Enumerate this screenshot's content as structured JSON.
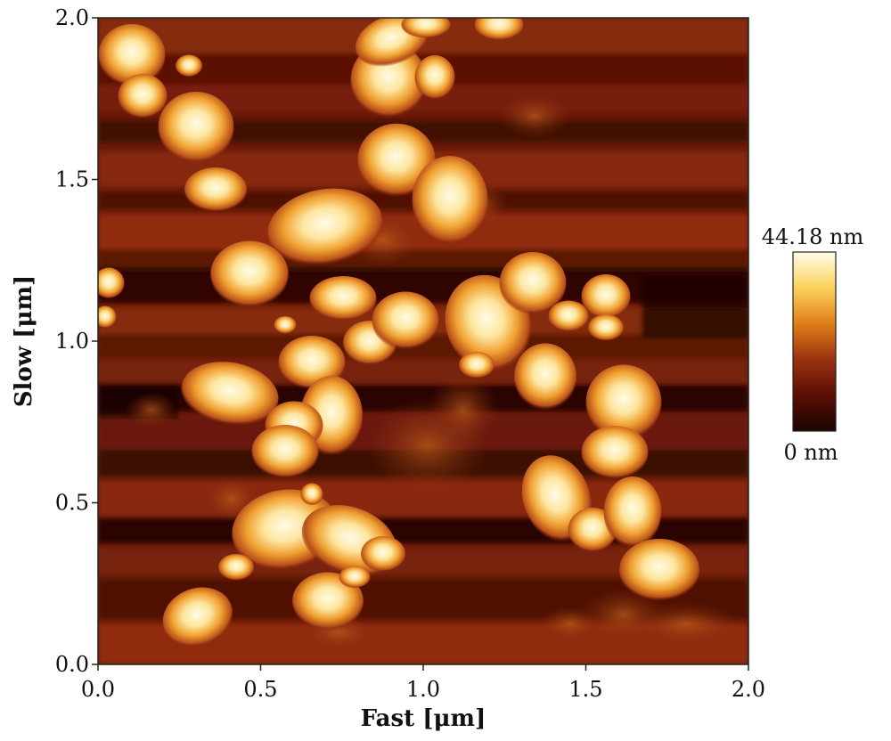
{
  "chart_data": {
    "type": "heatmap",
    "xlabel": "Fast [μm]",
    "ylabel": "Slow [μm]",
    "xlim": [
      0.0,
      2.0
    ],
    "ylim": [
      0.0,
      2.0
    ],
    "x_ticks": [
      "0.0",
      "0.5",
      "1.0",
      "1.5",
      "2.0"
    ],
    "y_ticks": [
      "0.0",
      "0.5",
      "1.0",
      "1.5",
      "2.0"
    ],
    "colorbar": {
      "max_label": "44.18 nm",
      "min_label": "0 nm",
      "colors": [
        "#1c0400",
        "#5a0e06",
        "#9a3210",
        "#e07e18",
        "#fbd25a",
        "#fffdea"
      ]
    }
  }
}
